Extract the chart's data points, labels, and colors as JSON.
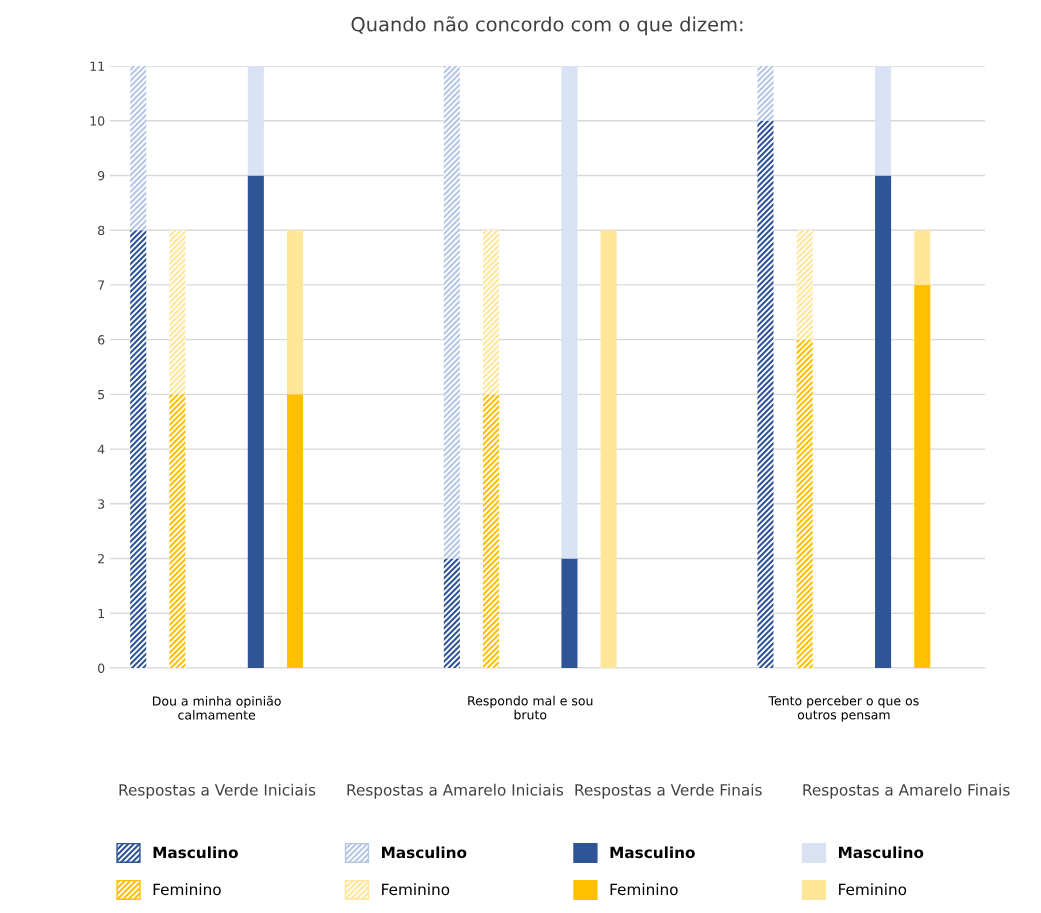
{
  "chart_data": {
    "type": "bar",
    "title": "Quando não concordo com o que dizem:",
    "categories": [
      null,
      null,
      "Dou a minha opinião\ncalmamente",
      null,
      null,
      null,
      null,
      null,
      null,
      null,
      "Respondo mal e sou\nbruto",
      null,
      null,
      null,
      null,
      null,
      null,
      null,
      "Tento perceber o que os\noutros pensam",
      null,
      null
    ],
    "stacked": true,
    "series": [
      {
        "name": "Masculino",
        "color": "#2f5597",
        "values": [
          8,
          null,
          null,
          null,
          null,
          null,
          null,
          null,
          2,
          null,
          null,
          null,
          null,
          null,
          null,
          null,
          10,
          null,
          null,
          null,
          null
        ]
      },
      {
        "name": "Feminino",
        "color": "#ffc000",
        "values": [
          null,
          5,
          null,
          null,
          null,
          null,
          null,
          null,
          null,
          5,
          null,
          null,
          null,
          null,
          null,
          null,
          null,
          6,
          null,
          null,
          null
        ]
      },
      {
        "name": "Masculino",
        "color": "#b4c7e7",
        "values": [
          3,
          null,
          null,
          null,
          null,
          null,
          null,
          null,
          9,
          null,
          null,
          null,
          null,
          null,
          null,
          null,
          1,
          null,
          null,
          null,
          null
        ]
      },
      {
        "name": "Feminino",
        "color": "#ffe699",
        "values": [
          null,
          3,
          null,
          null,
          null,
          null,
          null,
          null,
          null,
          3,
          null,
          null,
          null,
          null,
          null,
          null,
          null,
          2,
          null,
          null,
          null
        ]
      },
      {
        "name": "Masculino",
        "color": "#2f5597",
        "values": [
          null,
          null,
          null,
          9,
          null,
          null,
          null,
          null,
          null,
          null,
          null,
          2,
          null,
          null,
          null,
          null,
          null,
          null,
          null,
          9,
          null
        ]
      },
      {
        "name": "Feminino",
        "color": "#ffc000",
        "values": [
          null,
          null,
          null,
          null,
          5,
          null,
          null,
          null,
          null,
          null,
          null,
          null,
          0,
          null,
          null,
          null,
          null,
          null,
          null,
          null,
          7
        ]
      },
      {
        "name": "Masculino",
        "color": "#dae3f3",
        "values": [
          null,
          null,
          null,
          2,
          null,
          null,
          null,
          null,
          null,
          null,
          null,
          9,
          null,
          null,
          null,
          null,
          null,
          null,
          null,
          2,
          null
        ]
      },
      {
        "name": "Feminino",
        "color": "#ffe699",
        "values": [
          null,
          null,
          null,
          null,
          3,
          null,
          null,
          null,
          null,
          null,
          null,
          null,
          8,
          null,
          null,
          null,
          null,
          null,
          null,
          null,
          1
        ]
      }
    ],
    "annotations": [
      "Respostas a Verde Iniciais",
      "Respostas a Amarelo Iniciais",
      "Respostas a Verde Finais",
      "Respostas a Amarelo Finais"
    ],
    "ylim": [
      0,
      11
    ],
    "yticks": [
      0,
      1,
      2,
      3,
      4,
      5,
      6,
      7,
      8,
      9,
      10,
      11
    ],
    "grid": "y",
    "legend": "bottom"
  }
}
